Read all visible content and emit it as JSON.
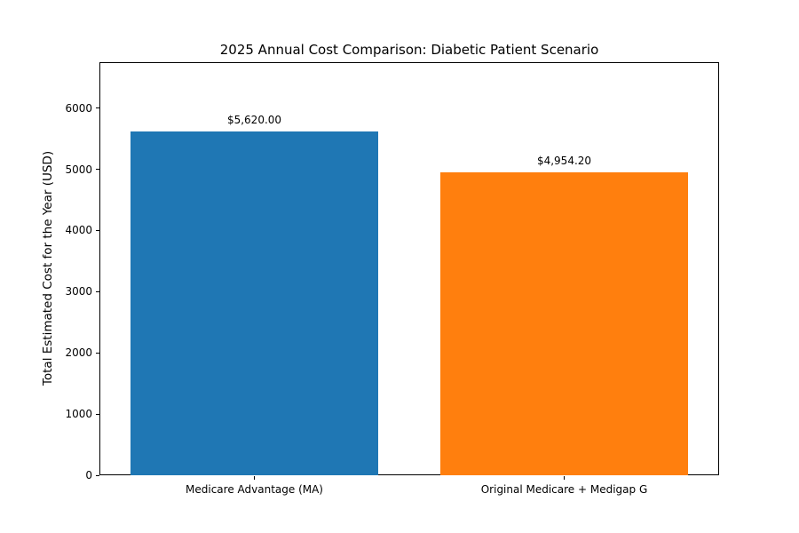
{
  "figure": {
    "background": "#ffffff"
  },
  "chart_data": {
    "type": "bar",
    "title": "2025 Annual Cost Comparison: Diabetic Patient Scenario",
    "categories": [
      "Medicare Advantage (MA)",
      "Original Medicare + Medigap G"
    ],
    "values": [
      5620.0,
      4954.2
    ],
    "bar_labels": [
      "$5,620.00",
      "$4,954.20"
    ],
    "bar_colors": [
      "#1f77b4",
      "#ff7f0e"
    ],
    "xlabel": "",
    "ylabel": "Total Estimated Cost for the Year (USD)",
    "ylim": [
      0,
      6750
    ],
    "yticks": [
      0,
      1000,
      2000,
      3000,
      4000,
      5000,
      6000
    ],
    "grid": false,
    "legend": "none",
    "bar_slot_fraction": 0.8
  }
}
